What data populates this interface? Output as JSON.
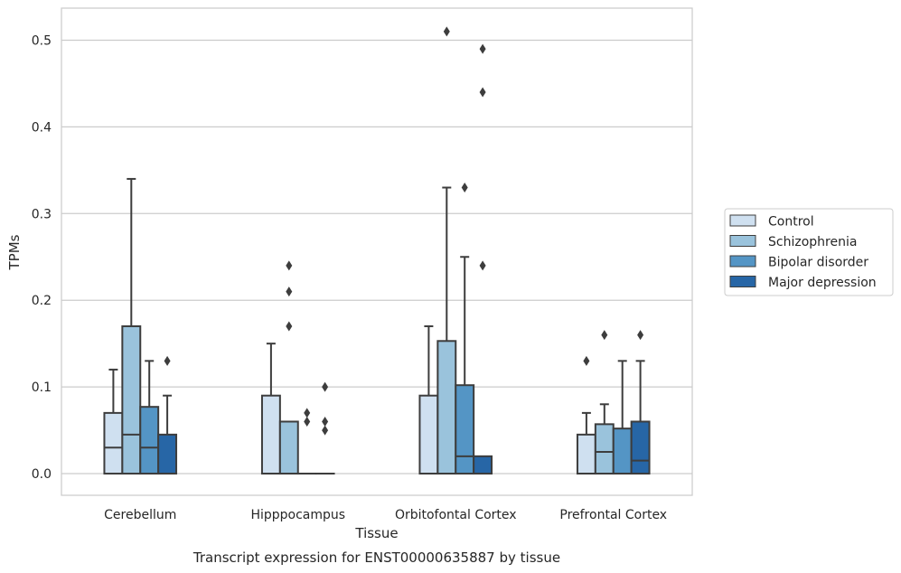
{
  "caption": "Transcript expression for ENST00000635887 by tissue",
  "chart_data": {
    "type": "box",
    "xlabel": "Tissue",
    "ylabel": "TPMs",
    "ylim": [
      -0.025,
      0.537
    ],
    "yticks": [
      0.0,
      0.1,
      0.2,
      0.3,
      0.4,
      0.5
    ],
    "ytick_labels": [
      "0.0",
      "0.1",
      "0.2",
      "0.3",
      "0.4",
      "0.5"
    ],
    "grid": "horizontal",
    "legend_position": "right",
    "categories": [
      "Cerebellum",
      "Hipppocampus",
      "Orbitofontal Cortex",
      "Prefrontal Cortex"
    ],
    "series": [
      {
        "name": "Control",
        "color": "#cfe0f0",
        "boxes": [
          {
            "min": 0.0,
            "q1": 0.0,
            "median": 0.03,
            "q3": 0.07,
            "max": 0.12,
            "outliers": []
          },
          {
            "min": 0.0,
            "q1": 0.0,
            "median": 0.0,
            "q3": 0.09,
            "max": 0.15,
            "outliers": []
          },
          {
            "min": 0.0,
            "q1": 0.0,
            "median": 0.0,
            "q3": 0.09,
            "max": 0.17,
            "outliers": []
          },
          {
            "min": 0.0,
            "q1": 0.0,
            "median": 0.0,
            "q3": 0.045,
            "max": 0.07,
            "outliers": [
              0.13
            ]
          }
        ]
      },
      {
        "name": "Schizophrenia",
        "color": "#9ac3dc",
        "boxes": [
          {
            "min": 0.0,
            "q1": 0.0,
            "median": 0.045,
            "q3": 0.17,
            "max": 0.34,
            "outliers": []
          },
          {
            "min": 0.0,
            "q1": 0.0,
            "median": 0.0,
            "q3": 0.06,
            "max": 0.06,
            "outliers": [
              0.24,
              0.21,
              0.17
            ]
          },
          {
            "min": 0.0,
            "q1": 0.0,
            "median": 0.0,
            "q3": 0.153,
            "max": 0.33,
            "outliers": [
              0.51
            ]
          },
          {
            "min": 0.0,
            "q1": 0.0,
            "median": 0.025,
            "q3": 0.057,
            "max": 0.08,
            "outliers": [
              0.16
            ]
          }
        ]
      },
      {
        "name": "Bipolar disorder",
        "color": "#5495c5",
        "boxes": [
          {
            "min": 0.0,
            "q1": 0.0,
            "median": 0.03,
            "q3": 0.077,
            "max": 0.13,
            "outliers": []
          },
          {
            "min": 0.0,
            "q1": 0.0,
            "median": 0.0,
            "q3": 0.0,
            "max": 0.0,
            "outliers": [
              0.07,
              0.06
            ]
          },
          {
            "min": 0.0,
            "q1": 0.0,
            "median": 0.02,
            "q3": 0.102,
            "max": 0.25,
            "outliers": [
              0.33
            ]
          },
          {
            "min": 0.0,
            "q1": 0.0,
            "median": 0.0,
            "q3": 0.052,
            "max": 0.13,
            "outliers": []
          }
        ]
      },
      {
        "name": "Major depression",
        "color": "#2766a6",
        "boxes": [
          {
            "min": 0.0,
            "q1": 0.0,
            "median": 0.0,
            "q3": 0.045,
            "max": 0.09,
            "outliers": [
              0.13
            ]
          },
          {
            "min": 0.0,
            "q1": 0.0,
            "median": 0.0,
            "q3": 0.0,
            "max": 0.0,
            "outliers": [
              0.1,
              0.06,
              0.05
            ]
          },
          {
            "min": 0.0,
            "q1": 0.0,
            "median": 0.0,
            "q3": 0.02,
            "max": 0.02,
            "outliers": [
              0.49,
              0.44,
              0.24
            ]
          },
          {
            "min": 0.0,
            "q1": 0.0,
            "median": 0.015,
            "q3": 0.06,
            "max": 0.13,
            "outliers": [
              0.16
            ]
          }
        ]
      }
    ]
  }
}
